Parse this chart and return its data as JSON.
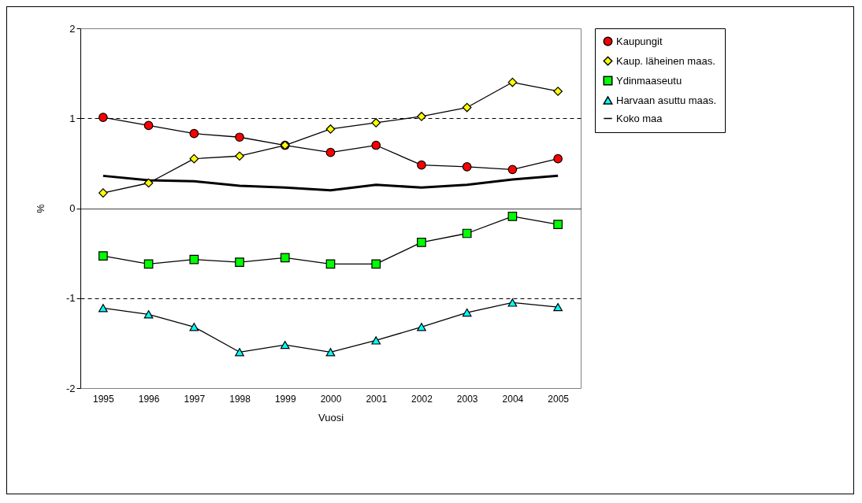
{
  "chart_data": {
    "type": "line",
    "xlabel": "Vuosi",
    "ylabel": "%",
    "categories": [
      "1995",
      "1996",
      "1997",
      "1998",
      "1999",
      "2000",
      "2001",
      "2002",
      "2003",
      "2004",
      "2005"
    ],
    "series": [
      {
        "name": "Kaupungit",
        "color": "#ff0000",
        "marker": "circle",
        "values": [
          1.01,
          0.92,
          0.83,
          0.79,
          0.7,
          0.62,
          0.7,
          0.48,
          0.46,
          0.43,
          0.55
        ]
      },
      {
        "name": "Kaup. läheinen maas.",
        "color": "#ffff00",
        "marker": "diamond",
        "values": [
          0.17,
          0.28,
          0.55,
          0.58,
          0.7,
          0.88,
          0.95,
          1.02,
          1.12,
          1.4,
          1.3
        ]
      },
      {
        "name": "Ydinmaaseutu",
        "color": "#00ff00",
        "marker": "square",
        "values": [
          -0.53,
          -0.62,
          -0.57,
          -0.6,
          -0.55,
          -0.62,
          -0.62,
          -0.38,
          -0.28,
          -0.09,
          -0.18
        ]
      },
      {
        "name": "Harvaan asuttu maas.",
        "color": "#00ffff",
        "marker": "triangle",
        "values": [
          -1.11,
          -1.18,
          -1.32,
          -1.6,
          -1.52,
          -1.6,
          -1.47,
          -1.32,
          -1.16,
          -1.05,
          -1.1
        ]
      },
      {
        "name": "Koko maa",
        "color": "#000000",
        "marker": "none",
        "values": [
          0.36,
          0.31,
          0.3,
          0.25,
          0.23,
          0.2,
          0.26,
          0.23,
          0.26,
          0.32,
          0.36
        ]
      }
    ],
    "ylim": [
      -2,
      2
    ],
    "yticks": [
      -2,
      -1,
      0,
      1,
      2
    ],
    "grid": "y",
    "legend": "right"
  }
}
